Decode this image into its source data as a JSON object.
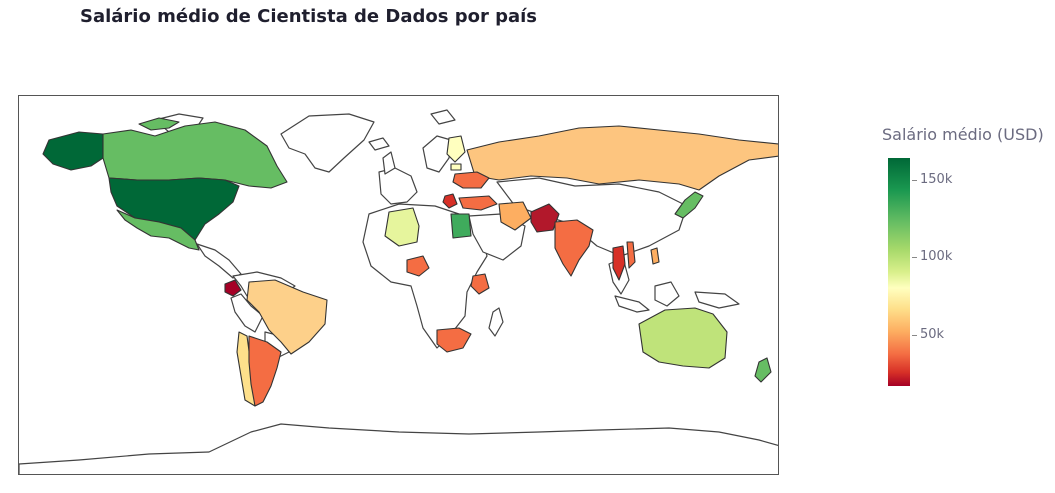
{
  "title": "Salário médio de Cientista de Dados por país",
  "colorbar": {
    "title": "Salário médio (USD)",
    "ticks": [
      "150k",
      "100k",
      "50k"
    ],
    "tick_values": [
      150000,
      100000,
      50000
    ],
    "range": [
      15000,
      165000
    ],
    "colorscale": [
      "#a50026",
      "#d73027",
      "#f46d43",
      "#fdae61",
      "#fee08b",
      "#ffffbf",
      "#d9ef8b",
      "#a6d96a",
      "#66bd63",
      "#1a9850",
      "#006837"
    ]
  },
  "colors": {
    "no_data_fill": "#ffffff",
    "border": "#333333",
    "frame": "#555555"
  },
  "chart_data": {
    "type": "choropleth",
    "colored_regions": [
      "Alaska",
      "Canada",
      "United States",
      "Mexico",
      "Ecuador",
      "Brazil",
      "Chile",
      "Argentina",
      "Russia",
      "Finland",
      "Estonia",
      "Ukraine",
      "Greece",
      "Turkey",
      "Algeria",
      "Egypt",
      "Nigeria",
      "Kenya",
      "South Africa",
      "Pakistan",
      "India",
      "Thailand",
      "Vietnam",
      "Philippines",
      "Japan",
      "Iran",
      "Australia",
      "New Zealand"
    ]
  }
}
